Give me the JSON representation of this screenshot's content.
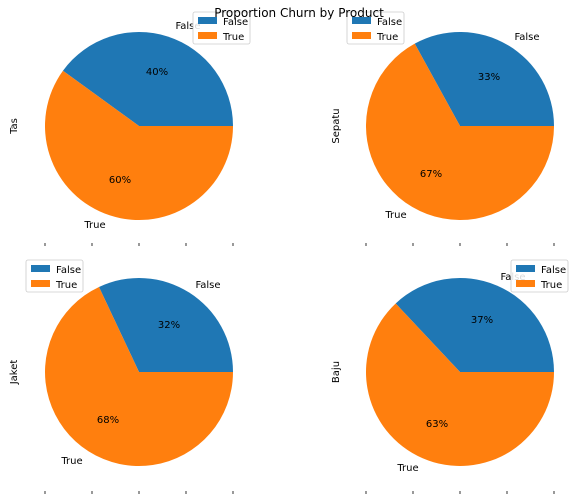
{
  "figure": {
    "title": "Proportion Churn by Product"
  },
  "chart_data": [
    {
      "type": "pie",
      "ylabel": "Tas",
      "categories": [
        "False",
        "True"
      ],
      "values": [
        40,
        60
      ],
      "value_labels": [
        "40%",
        "60%"
      ],
      "legend": {
        "entries": [
          "False",
          "True"
        ],
        "placement": "top-center"
      },
      "colors": [
        "#1f77b4",
        "#ff7f0e"
      ]
    },
    {
      "type": "pie",
      "ylabel": "Sepatu",
      "categories": [
        "False",
        "True"
      ],
      "values": [
        33,
        67
      ],
      "value_labels": [
        "33%",
        "67%"
      ],
      "legend": {
        "entries": [
          "False",
          "True"
        ],
        "placement": "upper-left"
      },
      "colors": [
        "#1f77b4",
        "#ff7f0e"
      ]
    },
    {
      "type": "pie",
      "ylabel": "Jaket",
      "categories": [
        "False",
        "True"
      ],
      "values": [
        32,
        68
      ],
      "value_labels": [
        "32%",
        "68%"
      ],
      "legend": {
        "entries": [
          "False",
          "True"
        ],
        "placement": "upper-left"
      },
      "colors": [
        "#1f77b4",
        "#ff7f0e"
      ]
    },
    {
      "type": "pie",
      "ylabel": "Baju",
      "categories": [
        "False",
        "True"
      ],
      "values": [
        37,
        63
      ],
      "value_labels": [
        "37%",
        "63%"
      ],
      "legend": {
        "entries": [
          "False",
          "True"
        ],
        "placement": "upper-right"
      },
      "colors": [
        "#1f77b4",
        "#ff7f0e"
      ]
    }
  ]
}
